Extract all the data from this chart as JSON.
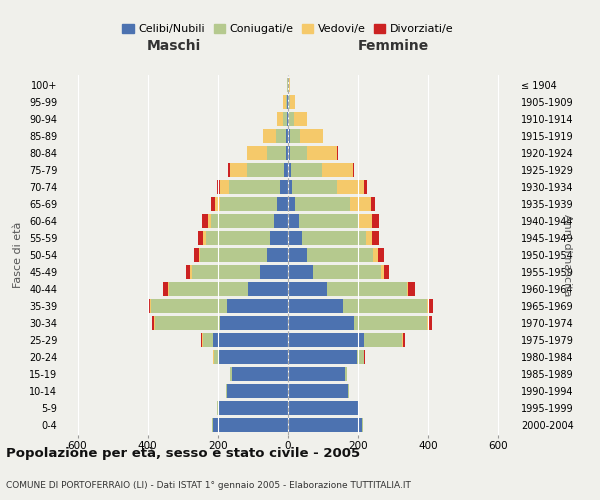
{
  "age_groups": [
    "0-4",
    "5-9",
    "10-14",
    "15-19",
    "20-24",
    "25-29",
    "30-34",
    "35-39",
    "40-44",
    "45-49",
    "50-54",
    "55-59",
    "60-64",
    "65-69",
    "70-74",
    "75-79",
    "80-84",
    "85-89",
    "90-94",
    "95-99",
    "100+"
  ],
  "birth_years": [
    "2000-2004",
    "1995-1999",
    "1990-1994",
    "1985-1989",
    "1980-1984",
    "1975-1979",
    "1970-1974",
    "1965-1969",
    "1960-1964",
    "1955-1959",
    "1950-1954",
    "1945-1949",
    "1940-1944",
    "1935-1939",
    "1930-1934",
    "1925-1929",
    "1920-1924",
    "1915-1919",
    "1910-1914",
    "1905-1909",
    "≤ 1904"
  ],
  "colors": {
    "celibe": "#4C72B0",
    "coniugato": "#B5C98E",
    "vedovo": "#F5C96A",
    "divorziato": "#CC2222"
  },
  "males_celibe": [
    215,
    200,
    175,
    160,
    200,
    215,
    195,
    175,
    115,
    80,
    60,
    50,
    40,
    30,
    22,
    12,
    6,
    5,
    4,
    2,
    1
  ],
  "males_coniugato": [
    1,
    1,
    2,
    4,
    12,
    28,
    185,
    215,
    225,
    195,
    190,
    185,
    180,
    165,
    145,
    105,
    55,
    28,
    10,
    4,
    1
  ],
  "males_vedovo": [
    0,
    0,
    0,
    1,
    1,
    2,
    2,
    2,
    2,
    3,
    5,
    7,
    9,
    14,
    28,
    48,
    55,
    38,
    18,
    7,
    2
  ],
  "males_div": [
    0,
    0,
    0,
    0,
    1,
    2,
    5,
    8,
    15,
    12,
    14,
    14,
    15,
    10,
    8,
    5,
    2,
    0,
    0,
    0,
    0
  ],
  "females_nubile": [
    212,
    202,
    172,
    162,
    198,
    218,
    188,
    158,
    110,
    72,
    55,
    40,
    30,
    20,
    12,
    8,
    5,
    5,
    4,
    2,
    1
  ],
  "females_coniugata": [
    1,
    1,
    2,
    5,
    18,
    108,
    208,
    238,
    228,
    193,
    188,
    182,
    172,
    158,
    128,
    88,
    48,
    28,
    12,
    4,
    1
  ],
  "females_vedova": [
    0,
    0,
    0,
    1,
    2,
    3,
    4,
    4,
    5,
    9,
    14,
    18,
    38,
    58,
    78,
    88,
    88,
    68,
    38,
    14,
    4
  ],
  "females_div": [
    0,
    0,
    0,
    1,
    2,
    5,
    10,
    14,
    20,
    14,
    17,
    19,
    19,
    12,
    8,
    5,
    2,
    0,
    0,
    0,
    0
  ],
  "title": "Popolazione per età, sesso e stato civile - 2005",
  "subtitle": "COMUNE DI PORTOFERRAIO (LI) - Dati ISTAT 1° gennaio 2005 - Elaborazione TUTTITALIA.IT",
  "xlabel_left": "Maschi",
  "xlabel_right": "Femmine",
  "ylabel_left": "Fasce di età",
  "ylabel_right": "Anni di nascita",
  "xlim": 650,
  "legend_labels": [
    "Celibi/Nubili",
    "Coniugati/e",
    "Vedovi/e",
    "Divorziati/e"
  ],
  "background": "#F0F0EB"
}
